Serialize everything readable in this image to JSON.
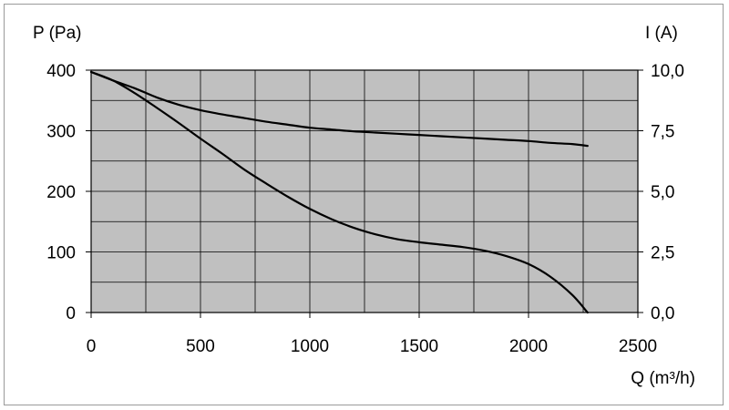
{
  "chart_data": {
    "type": "line",
    "title": "",
    "xlabel": "Q (m³/h)",
    "ylabel_left": "P (Pa)",
    "ylabel_right": "I (A)",
    "xlim": [
      0,
      2500
    ],
    "ylim_left": [
      0,
      400
    ],
    "ylim_right": [
      0,
      10
    ],
    "x_ticks": [
      "0",
      "500",
      "1000",
      "1500",
      "2000",
      "2500"
    ],
    "y_left_ticks": [
      "0",
      "100",
      "200",
      "300",
      "400"
    ],
    "y_right_ticks": [
      "0,0",
      "2,5",
      "5,0",
      "7,5",
      "10,0"
    ],
    "grid": true,
    "x_gridlines": [
      0,
      250,
      500,
      750,
      1000,
      1250,
      1500,
      1750,
      2000,
      2250,
      2500
    ],
    "y_left_gridlines": [
      0,
      50,
      100,
      150,
      200,
      250,
      300,
      350,
      400
    ],
    "background": "#c0c0c0",
    "line_color": "#000000",
    "series": [
      {
        "axis": "left",
        "x": [
          0,
          100,
          200,
          300,
          400,
          500,
          600,
          700,
          800,
          900,
          1000,
          1100,
          1200,
          1300,
          1400,
          1500,
          1600,
          1700,
          1800,
          1900,
          2000,
          2100,
          2200,
          2270
        ],
        "y": [
          397,
          383,
          362,
          338,
          313,
          287,
          262,
          236,
          213,
          191,
          171,
          154,
          140,
          129,
          121,
          116,
          112,
          108,
          102,
          93,
          80,
          59,
          29,
          0
        ]
      },
      {
        "axis": "left",
        "x": [
          0,
          100,
          200,
          300,
          400,
          500,
          600,
          700,
          800,
          900,
          1000,
          1100,
          1200,
          1300,
          1400,
          1500,
          1600,
          1700,
          1800,
          1900,
          2000,
          2100,
          2200,
          2270
        ],
        "y": [
          397,
          383,
          370,
          355,
          343,
          334,
          327,
          321,
          315,
          310,
          305,
          302,
          299,
          297,
          295,
          293,
          291,
          289,
          287,
          285,
          283,
          280,
          278,
          275
        ]
      }
    ]
  }
}
